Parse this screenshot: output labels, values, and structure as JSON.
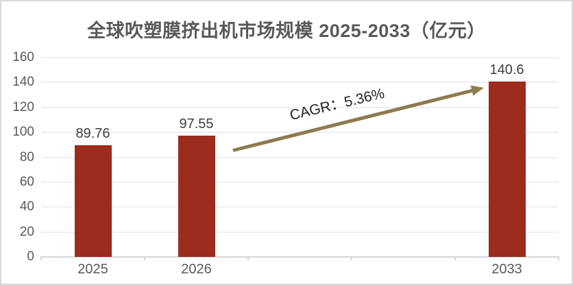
{
  "chart_data": {
    "type": "bar",
    "title": "全球吹塑膜挤出机市场规模 2025-2033（亿元）",
    "categories": [
      "2025",
      "2026",
      "",
      "",
      "2033"
    ],
    "values": [
      89.76,
      97.55,
      null,
      null,
      140.6
    ],
    "bar_labels": [
      "89.76",
      "97.55",
      "",
      "",
      "140.6"
    ],
    "xlabel": "",
    "ylabel": "",
    "ylim": [
      0,
      160
    ],
    "yticks": [
      0,
      20,
      40,
      60,
      80,
      100,
      120,
      140,
      160
    ],
    "grid": true,
    "legend_position": "none",
    "annotation": {
      "text": "CAGR：5.36%",
      "shape": "up-right-arrow"
    },
    "colors": {
      "bar": "#9B2C1E",
      "arrow": "#8B7B4F",
      "title_text": "#595959",
      "axis_text": "#595959",
      "value_text": "#3F3F3F",
      "gridline": "#EFEFEF",
      "axis_line": "#D6D6D6",
      "frame_border": "#D8D8D8",
      "background": "#FFFFFF"
    }
  }
}
